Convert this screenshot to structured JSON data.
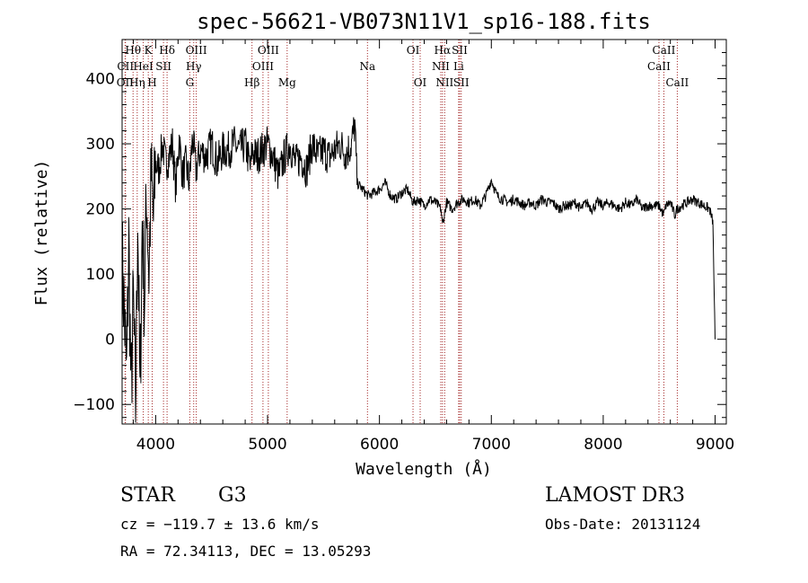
{
  "chart_data": {
    "type": "line",
    "title": "spec-56621-VB073N11V1_sp16-188.fits",
    "xlabel": "Wavelength (Å)",
    "ylabel": "Flux (relative)",
    "xlim": [
      3700,
      9100
    ],
    "ylim": [
      -130,
      460
    ],
    "xticks": [
      4000,
      5000,
      6000,
      7000,
      8000,
      9000
    ],
    "yticks": [
      -100,
      0,
      100,
      200,
      300,
      400
    ],
    "xtick_labels": [
      "4000",
      "5000",
      "6000",
      "7000",
      "8000",
      "9000"
    ],
    "ytick_labels": [
      "−100",
      "0",
      "100",
      "200",
      "300",
      "400"
    ],
    "line_color": "#000000",
    "marker_color": "#a52a2a",
    "series": [
      {
        "name": "flux",
        "x": [
          3700,
          3720,
          3740,
          3760,
          3780,
          3800,
          3820,
          3840,
          3860,
          3880,
          3900,
          3920,
          3940,
          3960,
          3980,
          4000,
          4030,
          4060,
          4090,
          4120,
          4150,
          4180,
          4210,
          4240,
          4270,
          4300,
          4330,
          4360,
          4400,
          4450,
          4500,
          4550,
          4600,
          4650,
          4700,
          4750,
          4800,
          4850,
          4861,
          4900,
          4950,
          5000,
          5050,
          5100,
          5150,
          5200,
          5250,
          5300,
          5350,
          5400,
          5450,
          5500,
          5550,
          5600,
          5650,
          5700,
          5750,
          5780,
          5800,
          5850,
          5900,
          5950,
          6000,
          6050,
          6100,
          6150,
          6200,
          6250,
          6300,
          6350,
          6400,
          6450,
          6500,
          6550,
          6563,
          6600,
          6650,
          6700,
          6750,
          6800,
          6850,
          6900,
          6950,
          7000,
          7050,
          7100,
          7150,
          7200,
          7250,
          7300,
          7350,
          7400,
          7450,
          7500,
          7550,
          7600,
          7650,
          7700,
          7750,
          7800,
          7850,
          7900,
          7950,
          8000,
          8050,
          8100,
          8150,
          8200,
          8250,
          8300,
          8350,
          8400,
          8450,
          8500,
          8540,
          8560,
          8600,
          8640,
          8660,
          8700,
          8750,
          8800,
          8850,
          8900,
          8950,
          8980,
          9000
        ],
        "y": [
          120,
          40,
          -60,
          150,
          -90,
          60,
          -110,
          200,
          -100,
          180,
          60,
          230,
          100,
          250,
          180,
          270,
          260,
          300,
          270,
          280,
          300,
          230,
          310,
          250,
          270,
          240,
          310,
          260,
          290,
          280,
          300,
          270,
          290,
          290,
          300,
          290,
          300,
          260,
          290,
          280,
          290,
          300,
          280,
          250,
          280,
          300,
          270,
          280,
          260,
          300,
          280,
          290,
          280,
          290,
          300,
          285,
          300,
          330,
          240,
          230,
          220,
          225,
          230,
          240,
          220,
          215,
          225,
          230,
          210,
          215,
          205,
          215,
          210,
          200,
          175,
          210,
          200,
          210,
          215,
          210,
          215,
          205,
          220,
          245,
          220,
          215,
          210,
          215,
          210,
          205,
          210,
          205,
          215,
          210,
          210,
          200,
          205,
          205,
          210,
          200,
          210,
          200,
          210,
          205,
          210,
          205,
          200,
          210,
          205,
          215,
          200,
          205,
          205,
          205,
          190,
          205,
          210,
          190,
          200,
          205,
          210,
          215,
          210,
          205,
          200,
          180,
          0
        ]
      }
    ],
    "annotations": [
      {
        "label": "Hθ",
        "wavelength": 3798,
        "row": 0
      },
      {
        "label": "K",
        "wavelength": 3934,
        "row": 0
      },
      {
        "label": "Hδ",
        "wavelength": 4102,
        "row": 0
      },
      {
        "label": "OIII",
        "wavelength": 4363,
        "row": 0
      },
      {
        "label": "OIII",
        "wavelength": 5007,
        "row": 0
      },
      {
        "label": "OI",
        "wavelength": 6300,
        "row": 0
      },
      {
        "label": "Hα",
        "wavelength": 6563,
        "row": 0
      },
      {
        "label": "SII",
        "wavelength": 6717,
        "row": 0
      },
      {
        "label": "CaII",
        "wavelength": 8542,
        "row": 0
      },
      {
        "label": "CII",
        "wavelength": 3730,
        "row": 1
      },
      {
        "label": "HeI",
        "wavelength": 3889,
        "row": 1
      },
      {
        "label": "SII",
        "wavelength": 4070,
        "row": 1
      },
      {
        "label": "Hγ",
        "wavelength": 4340,
        "row": 1
      },
      {
        "label": "OIII",
        "wavelength": 4959,
        "row": 1
      },
      {
        "label": "Na",
        "wavelength": 5893,
        "row": 1
      },
      {
        "label": "NII",
        "wavelength": 6548,
        "row": 1
      },
      {
        "label": "Li",
        "wavelength": 6708,
        "row": 1
      },
      {
        "label": "CaII",
        "wavelength": 8498,
        "row": 1
      },
      {
        "label": "OII",
        "wavelength": 3727,
        "row": 2
      },
      {
        "label": "Hη",
        "wavelength": 3835,
        "row": 2
      },
      {
        "label": "H",
        "wavelength": 3969,
        "row": 2
      },
      {
        "label": "G",
        "wavelength": 4305,
        "row": 2
      },
      {
        "label": "Hβ",
        "wavelength": 4861,
        "row": 2
      },
      {
        "label": "Mg",
        "wavelength": 5175,
        "row": 2
      },
      {
        "label": "OI",
        "wavelength": 6364,
        "row": 2
      },
      {
        "label": "NII",
        "wavelength": 6583,
        "row": 2
      },
      {
        "label": "SII",
        "wavelength": 6731,
        "row": 2
      },
      {
        "label": "CaII",
        "wavelength": 8662,
        "row": 2
      }
    ]
  },
  "info": {
    "class": "STAR",
    "subclass": "G3",
    "survey": "LAMOST DR3",
    "redshift": "cz = −119.7 ± 13.6 km/s",
    "obs_date": "Obs-Date: 20131124",
    "coords": "RA =  72.34113, DEC =  13.05293"
  }
}
